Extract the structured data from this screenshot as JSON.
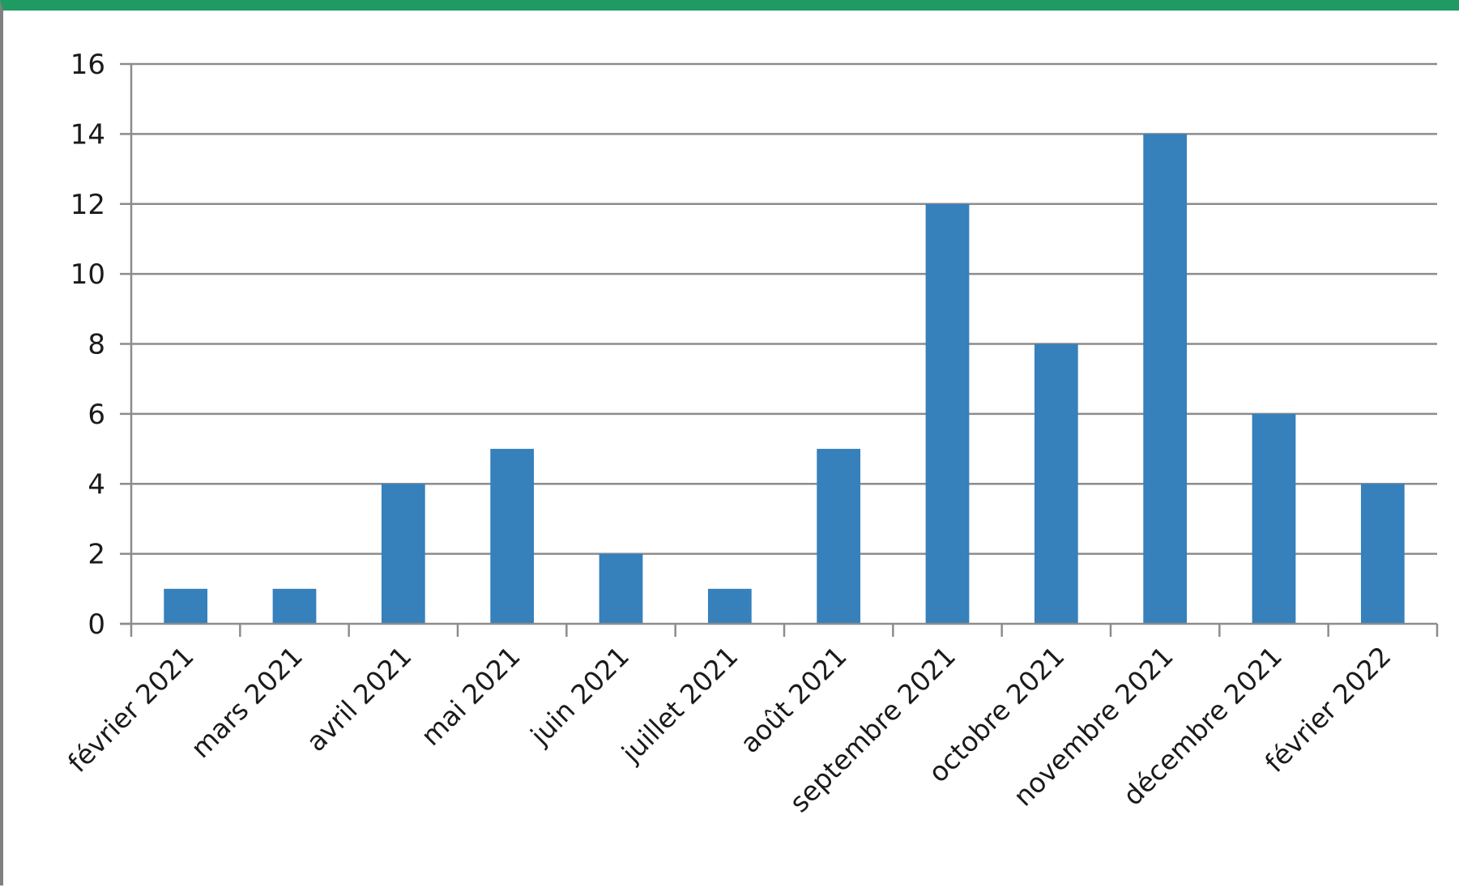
{
  "chart_data": {
    "type": "bar",
    "categories": [
      "février 2021",
      "mars 2021",
      "avril 2021",
      "mai 2021",
      "juin 2021",
      "juillet 2021",
      "août 2021",
      "septembre 2021",
      "octobre 2021",
      "novembre 2021",
      "décembre 2021",
      "février 2022"
    ],
    "values": [
      1,
      1,
      4,
      5,
      2,
      1,
      5,
      12,
      8,
      14,
      6,
      4
    ],
    "title": "",
    "xlabel": "",
    "ylabel": "",
    "ylim": [
      0,
      16
    ],
    "yticks": [
      "0",
      "2",
      "4",
      "6",
      "8",
      "10",
      "12",
      "14",
      "16"
    ],
    "grid": true,
    "legend": "none",
    "colors": {
      "bar": "#3680bb",
      "grid": "#8c8c8c",
      "frame_top": "#1f9a63",
      "frame_left": "#808080"
    }
  }
}
